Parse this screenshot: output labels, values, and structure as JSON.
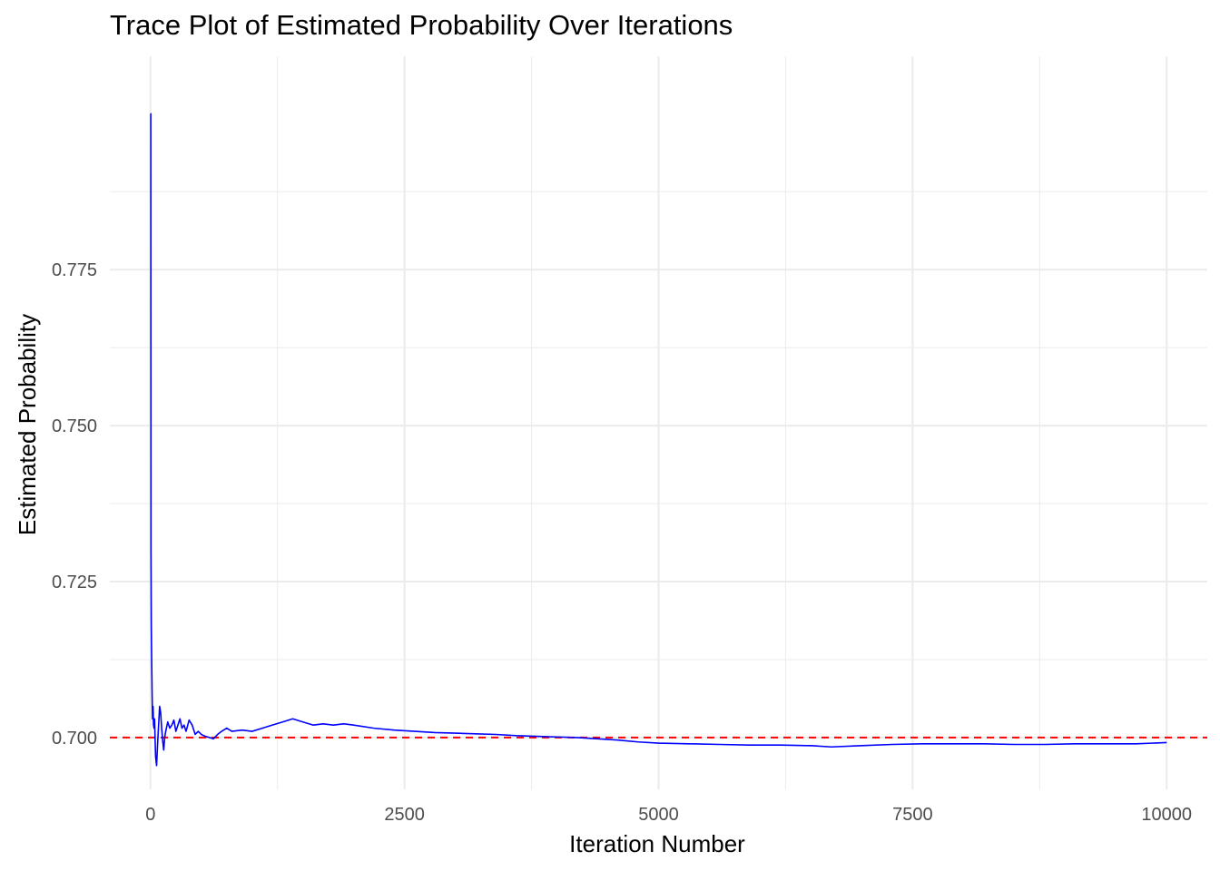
{
  "chart_data": {
    "type": "line",
    "title": "Trace Plot of Estimated Probability Over Iterations",
    "xlabel": "Iteration Number",
    "ylabel": "Estimated Probability",
    "xlim": [
      -400,
      10400
    ],
    "ylim": [
      0.6917,
      0.8092
    ],
    "x_ticks": [
      0,
      2500,
      5000,
      7500,
      10000
    ],
    "x_tick_labels": [
      "0",
      "2500",
      "5000",
      "7500",
      "10000"
    ],
    "y_ticks": [
      0.7,
      0.725,
      0.75,
      0.775
    ],
    "y_tick_labels": [
      "0.700",
      "0.725",
      "0.750",
      "0.775"
    ],
    "grid": true,
    "reference_line": {
      "y": 0.7,
      "style": "dashed",
      "color": "#ff0000"
    },
    "series": [
      {
        "color": "#0000ff",
        "x": [
          1,
          3,
          5,
          8,
          12,
          16,
          20,
          25,
          30,
          35,
          40,
          50,
          60,
          70,
          80,
          90,
          100,
          110,
          120,
          130,
          140,
          150,
          170,
          190,
          210,
          230,
          250,
          270,
          290,
          310,
          330,
          350,
          380,
          410,
          440,
          470,
          500,
          540,
          580,
          620,
          660,
          700,
          750,
          800,
          900,
          1000,
          1100,
          1200,
          1300,
          1400,
          1500,
          1600,
          1700,
          1800,
          1900,
          2000,
          2200,
          2400,
          2600,
          2800,
          3000,
          3200,
          3400,
          3600,
          3800,
          4000,
          4200,
          4400,
          4600,
          4800,
          5000,
          5300,
          5600,
          5900,
          6200,
          6500,
          6700,
          7000,
          7300,
          7600,
          7900,
          8200,
          8500,
          8800,
          9100,
          9400,
          9700,
          10000
        ],
        "y": [
          0.8,
          0.8,
          0.73,
          0.718,
          0.712,
          0.707,
          0.703,
          0.705,
          0.702,
          0.7015,
          0.703,
          0.697,
          0.6955,
          0.699,
          0.702,
          0.705,
          0.704,
          0.7015,
          0.6995,
          0.698,
          0.7,
          0.701,
          0.7025,
          0.7015,
          0.702,
          0.7028,
          0.701,
          0.702,
          0.703,
          0.7015,
          0.702,
          0.701,
          0.7028,
          0.702,
          0.7005,
          0.701,
          0.7005,
          0.7002,
          0.7,
          0.6998,
          0.7005,
          0.701,
          0.7015,
          0.701,
          0.7012,
          0.701,
          0.7015,
          0.702,
          0.7025,
          0.703,
          0.7025,
          0.702,
          0.7022,
          0.702,
          0.7022,
          0.702,
          0.7015,
          0.7012,
          0.701,
          0.7008,
          0.7007,
          0.7006,
          0.7005,
          0.7003,
          0.7002,
          0.7001,
          0.7,
          0.6998,
          0.6996,
          0.6993,
          0.6991,
          0.699,
          0.6989,
          0.6988,
          0.6988,
          0.6987,
          0.6985,
          0.6987,
          0.6989,
          0.699,
          0.699,
          0.699,
          0.6989,
          0.6989,
          0.699,
          0.699,
          0.699,
          0.6992
        ]
      }
    ]
  }
}
